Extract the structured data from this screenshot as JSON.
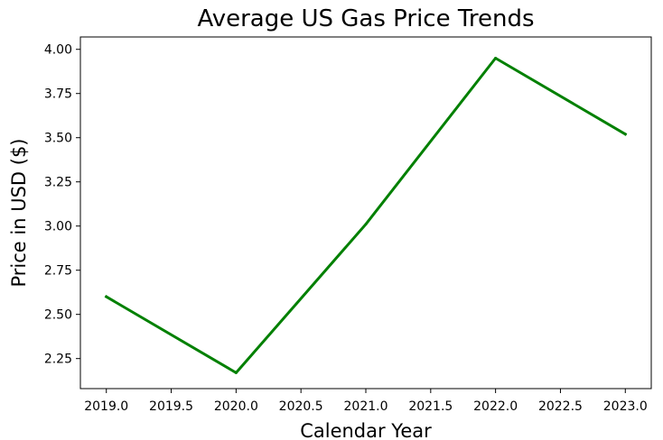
{
  "chart_data": {
    "type": "line",
    "title": "Average US Gas Price Trends",
    "xlabel": "Calendar Year",
    "ylabel": "Price in USD ($)",
    "xlim": [
      2018.8,
      2023.2
    ],
    "ylim": [
      2.08,
      4.07
    ],
    "x_ticks": [
      2019.0,
      2019.5,
      2020.0,
      2020.5,
      2021.0,
      2021.5,
      2022.0,
      2022.5,
      2023.0
    ],
    "x_tick_labels": [
      "2019.0",
      "2019.5",
      "2020.0",
      "2020.5",
      "2021.0",
      "2021.5",
      "2022.0",
      "2022.5",
      "2023.0"
    ],
    "y_ticks": [
      2.25,
      2.5,
      2.75,
      3.0,
      3.25,
      3.5,
      3.75,
      4.0
    ],
    "y_tick_labels": [
      "2.25",
      "2.50",
      "2.75",
      "3.00",
      "3.25",
      "3.50",
      "3.75",
      "4.00"
    ],
    "grid": false,
    "legend": "none",
    "series": [
      {
        "color": "#008000",
        "x": [
          2019,
          2020,
          2021,
          2022,
          2023
        ],
        "y": [
          2.6,
          2.17,
          3.01,
          3.95,
          3.52
        ]
      }
    ]
  }
}
